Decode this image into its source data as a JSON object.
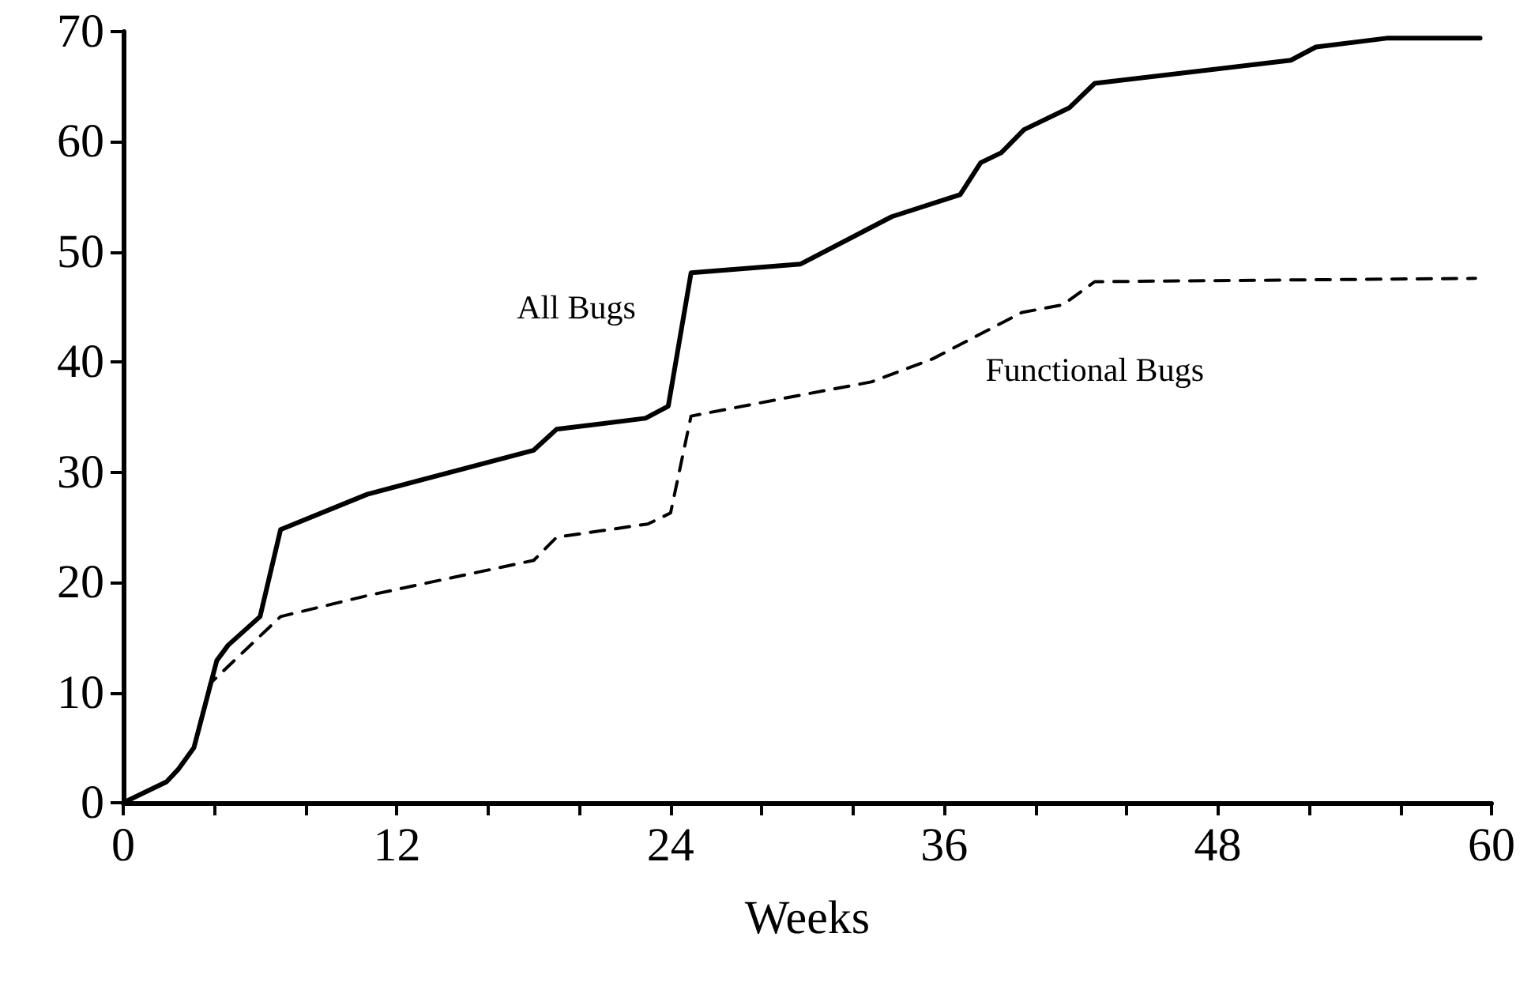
{
  "chart_data": {
    "type": "line",
    "xlabel": "Weeks",
    "xlim": [
      0,
      60
    ],
    "xticks": [
      0,
      {
        "value": 4,
        "label": null
      },
      {
        "value": 8,
        "label": null
      },
      12,
      {
        "value": 16,
        "label": null
      },
      {
        "value": 20,
        "label": null
      },
      24,
      {
        "value": 28,
        "label": null
      },
      {
        "value": 32,
        "label": null
      },
      36,
      {
        "value": 40,
        "label": null
      },
      {
        "value": 44,
        "label": null
      },
      48,
      {
        "value": 52,
        "label": null
      },
      {
        "value": 56,
        "label": null
      },
      60
    ],
    "ylim": [
      0,
      70
    ],
    "yticks": [
      0,
      10,
      20,
      30,
      40,
      50,
      60,
      70
    ],
    "grid": false,
    "legend": false,
    "marker": "none",
    "series": [
      {
        "name": "All Bugs",
        "color": "#000000",
        "line_style": "solid",
        "x": [
          0,
          1.9,
          2.4,
          3.1,
          4.1,
          4.6,
          6,
          6.9,
          10.7,
          18,
          19,
          22.9,
          23.9,
          24.9,
          29.7,
          33.7,
          36.7,
          37.6,
          38.5,
          39.5,
          41.5,
          42.6,
          51.2,
          52.3,
          55.4,
          59.5
        ],
        "values": [
          0,
          1.9,
          3,
          5,
          12.9,
          14.3,
          16.9,
          24.8,
          28,
          32,
          33.9,
          34.9,
          36,
          48.1,
          48.9,
          53.2,
          55.2,
          58.1,
          59,
          61.1,
          63.1,
          65.3,
          67.4,
          68.6,
          69.4,
          69.4
        ]
      },
      {
        "name": "Functional Bugs",
        "color": "#000000",
        "line_style": "dashed",
        "x": [
          0,
          1.9,
          2.4,
          3.1,
          3.8,
          6.9,
          10.7,
          18,
          19,
          23,
          24,
          24.9,
          29.7,
          32.8,
          35.5,
          39.4,
          41.2,
          42.6,
          59.3
        ],
        "values": [
          0,
          1.9,
          3,
          5,
          10.8,
          16.9,
          18.8,
          22,
          24.1,
          25.3,
          26.3,
          35.1,
          37,
          38.2,
          40.3,
          44.5,
          45.2,
          47.3,
          47.6
        ]
      }
    ]
  }
}
